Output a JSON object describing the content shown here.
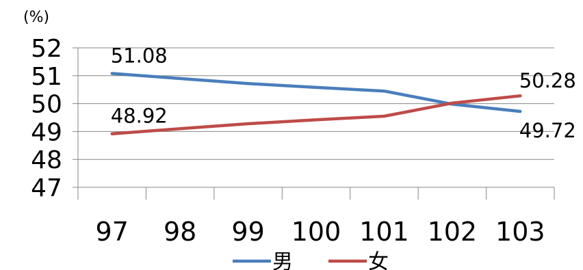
{
  "chart_data": {
    "type": "line",
    "title": "",
    "ylabel": "(%)",
    "xlabel": "",
    "categories": [
      "97",
      "98",
      "99",
      "100",
      "101",
      "102",
      "103"
    ],
    "ylim": [
      47,
      52
    ],
    "yticks": [
      47,
      48,
      49,
      50,
      51,
      52
    ],
    "grid": true,
    "legend_position": "bottom",
    "series": [
      {
        "name": "男",
        "color": "#4A7EBB",
        "values": [
          51.08,
          50.9,
          50.72,
          50.58,
          50.45,
          49.98,
          49.72
        ],
        "labels": {
          "0": "51.08",
          "6": "49.72"
        }
      },
      {
        "name": "女",
        "color": "#BE4B48",
        "values": [
          48.92,
          49.1,
          49.28,
          49.42,
          49.55,
          50.02,
          50.28
        ],
        "labels": {
          "0": "48.92",
          "6": "50.28"
        }
      }
    ]
  }
}
